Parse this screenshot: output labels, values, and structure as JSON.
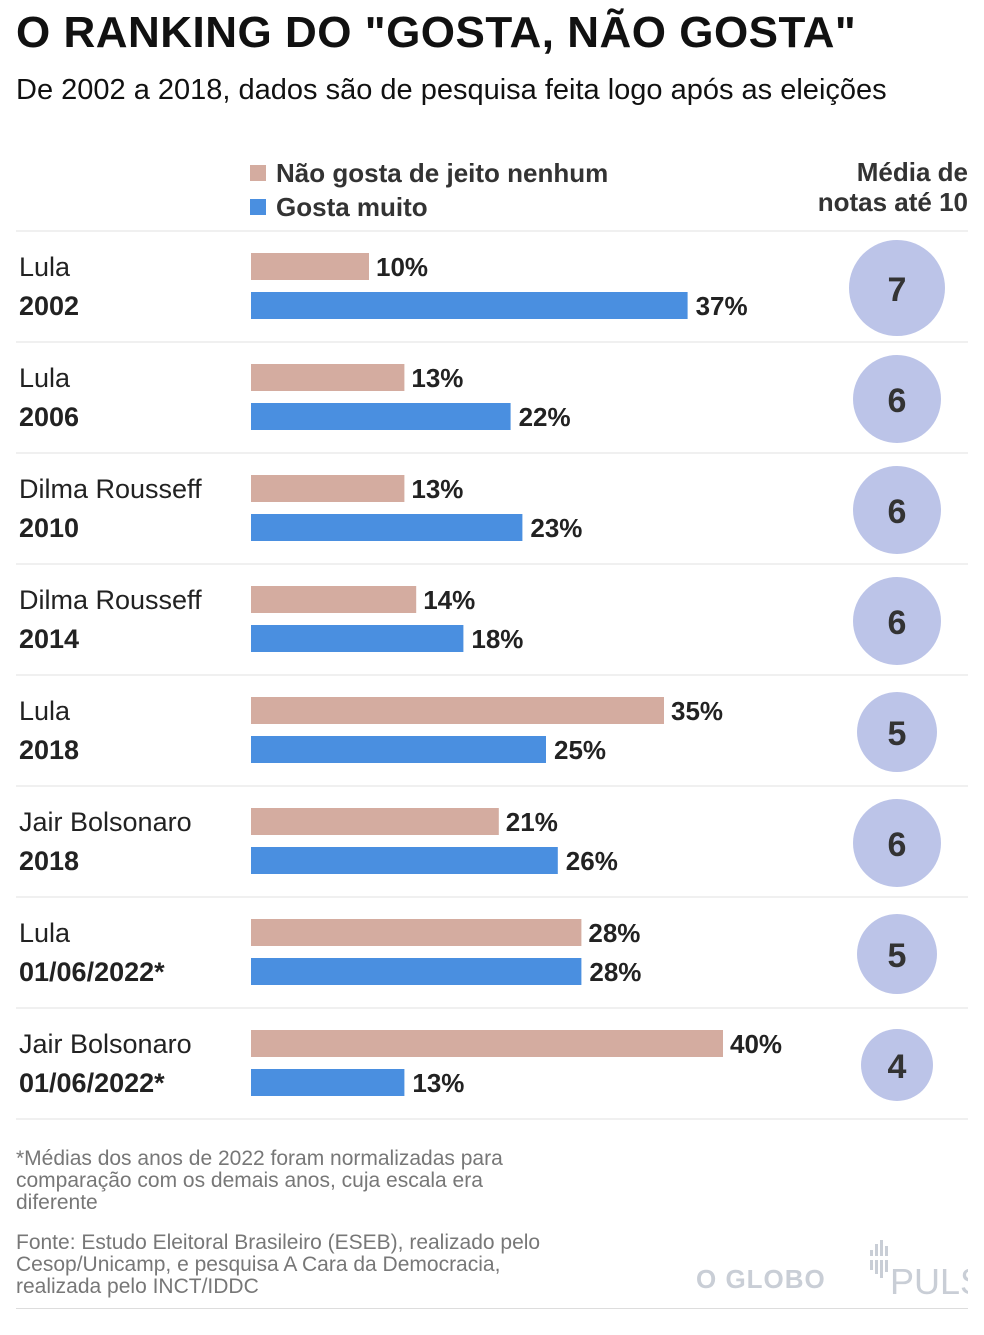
{
  "header": {
    "title": "O RANKING DO \"GOSTA, NÃO GOSTA\"",
    "subtitle": "De 2002 a 2018, dados são de pesquisa feita logo após as eleições"
  },
  "legend": {
    "dislike": "Não gosta de jeito nenhum",
    "like": "Gosta muito"
  },
  "avg_header": {
    "line1": "Média de",
    "line2": "notas até 10"
  },
  "colors": {
    "dislike": "#d4aca0",
    "like": "#4a8fe0",
    "circle": "#bcc4e8",
    "divider": "#e2e2e2"
  },
  "chart_data": {
    "type": "bar",
    "orientation": "horizontal",
    "unit": "%",
    "xlim": [
      0,
      40
    ],
    "series": [
      {
        "name": "Não gosta de jeito nenhum",
        "values": [
          10,
          13,
          13,
          14,
          35,
          21,
          28,
          40
        ]
      },
      {
        "name": "Gosta muito",
        "values": [
          37,
          22,
          23,
          18,
          25,
          26,
          28,
          13
        ]
      }
    ],
    "rows": [
      {
        "name": "Lula",
        "year": "2002",
        "dislike": 10,
        "like": 37,
        "dislike_label": "10%",
        "like_label": "37%",
        "avg": 7,
        "avg_label": "7"
      },
      {
        "name": "Lula",
        "year": "2006",
        "dislike": 13,
        "like": 22,
        "dislike_label": "13%",
        "like_label": "22%",
        "avg": 6,
        "avg_label": "6"
      },
      {
        "name": "Dilma Rousseff",
        "year": "2010",
        "dislike": 13,
        "like": 23,
        "dislike_label": "13%",
        "like_label": "23%",
        "avg": 6,
        "avg_label": "6"
      },
      {
        "name": "Dilma Rousseff",
        "year": "2014",
        "dislike": 14,
        "like": 18,
        "dislike_label": "14%",
        "like_label": "18%",
        "avg": 6,
        "avg_label": "6"
      },
      {
        "name": "Lula",
        "year": "2018",
        "dislike": 35,
        "like": 25,
        "dislike_label": "35%",
        "like_label": "25%",
        "avg": 5,
        "avg_label": "5"
      },
      {
        "name": "Jair Bolsonaro",
        "year": "2018",
        "dislike": 21,
        "like": 26,
        "dislike_label": "21%",
        "like_label": "26%",
        "avg": 6,
        "avg_label": "6"
      },
      {
        "name": "Lula",
        "year": "01/06/2022*",
        "dislike": 28,
        "like": 28,
        "dislike_label": "28%",
        "like_label": "28%",
        "avg": 5,
        "avg_label": "5"
      },
      {
        "name": "Jair Bolsonaro",
        "year": "01/06/2022*",
        "dislike": 40,
        "like": 13,
        "dislike_label": "40%",
        "like_label": "13%",
        "avg": 4,
        "avg_label": "4"
      }
    ]
  },
  "footer": {
    "footnote": "*Médias dos anos de 2022 foram normalizadas para comparação com os demais anos, cuja escala era diferente",
    "source": "Fonte: Estudo Eleitoral Brasileiro (ESEB), realizado pelo Cesop/Unicamp, e pesquisa A Cara da Democracia, realizada pelo INCT/IDDC",
    "logo_globo": "O GLOBO",
    "logo_pulso": "PULSO"
  }
}
